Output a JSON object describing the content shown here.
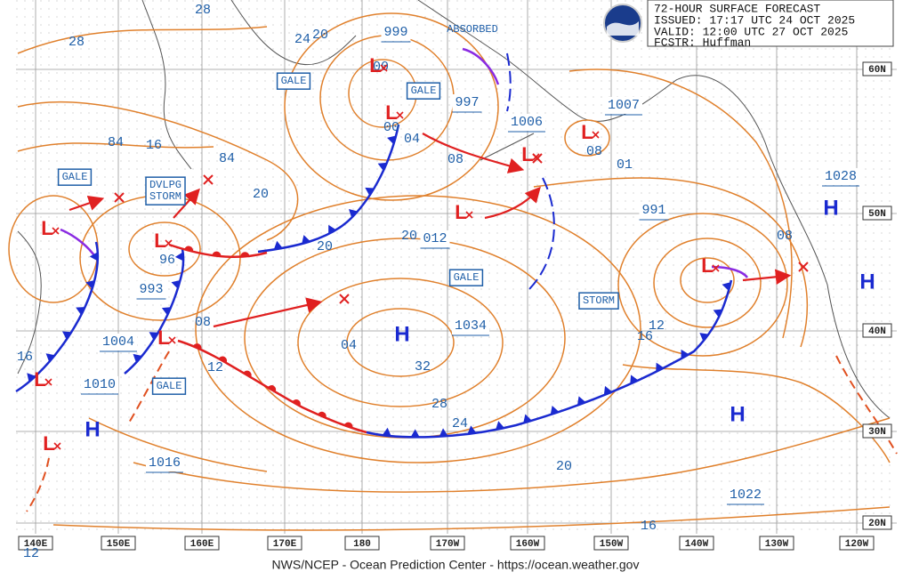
{
  "header": {
    "title": "72-HOUR SURFACE FORECAST",
    "issued": "ISSUED: 17:17 UTC 24 OCT 2025",
    "valid": "VALID:  12:00 UTC 27 OCT 2025",
    "forecaster": "FCSTR:  Huffman"
  },
  "footer": "NWS/NCEP - Ocean Prediction Center - https://ocean.weather.gov",
  "longitude_labels": [
    "140E",
    "150E",
    "160E",
    "170E",
    "180",
    "170W",
    "160W",
    "150W",
    "140W",
    "130W",
    "120W"
  ],
  "latitude_labels": [
    "60N",
    "50N",
    "40N",
    "30N",
    "20N"
  ],
  "pressure_labels": [
    "28",
    "28",
    "84",
    "16",
    "84",
    "20",
    "24",
    "20",
    "999",
    "00",
    "997",
    "00",
    "04",
    "1006",
    "1007",
    "08",
    "08",
    "01",
    "991",
    "1028",
    "20",
    "20",
    "012",
    "08",
    "96",
    "993",
    "08",
    "1004",
    "04",
    "1034",
    "32",
    "12",
    "16",
    "1010",
    "28",
    "24",
    "16",
    "12",
    "20",
    "1016",
    "1022",
    "16",
    "12"
  ],
  "annotation": "ABSORBED",
  "warnings": [
    "GALE",
    "GALE",
    "GALE",
    "DVLPG\nSTORM",
    "GALE",
    "STORM",
    "GALE"
  ],
  "centers": [
    "H",
    "H",
    "H",
    "H",
    "H",
    "L",
    "L",
    "L",
    "L",
    "L",
    "L",
    "L",
    "L",
    "L",
    "L",
    "L"
  ]
}
